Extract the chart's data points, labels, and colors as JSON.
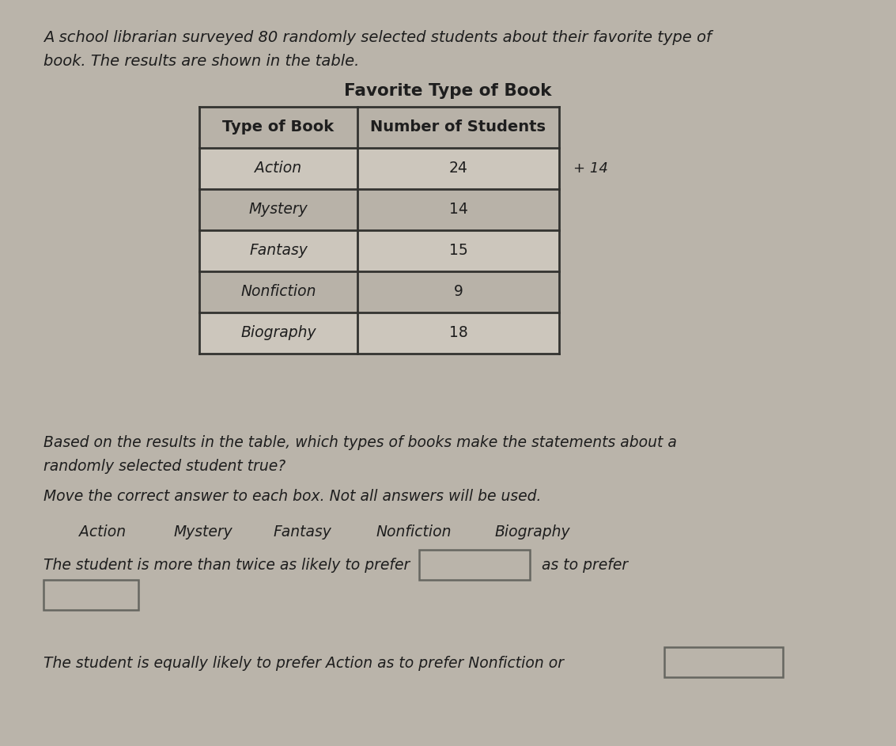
{
  "intro_text_line1": "A school librarian surveyed 80 randomly selected students about their favorite type of",
  "intro_text_line2": "book. The results are shown in the table.",
  "table_title": "Favorite Type of Book",
  "table_headers": [
    "Type of Book",
    "Number of Students"
  ],
  "table_rows": [
    [
      "Action",
      "24"
    ],
    [
      "Mystery",
      "14"
    ],
    [
      "Fantasy",
      "15"
    ],
    [
      "Nonfiction",
      "9"
    ],
    [
      "Biography",
      "18"
    ]
  ],
  "annotation": "+ 14",
  "question_line1": "Based on the results in the table, which types of books make the statements about a",
  "question_line2": "randomly selected student true?",
  "instruction_text": "Move the correct answer to each box. Not all answers will be used.",
  "answer_choices": [
    "Action",
    "Mystery",
    "Fantasy",
    "Nonfiction",
    "Biography"
  ],
  "statement1_prefix": "The student is more than twice as likely to prefer",
  "statement1_suffix": "as to prefer",
  "statement2": "The student is equally likely to prefer Action as to prefer Nonfiction or",
  "bg_color": "#bab4aa",
  "table_bg_light": "#ccc6bc",
  "table_bg_dark": "#b8b2a8",
  "box_fill": "#bab4aa",
  "box_edge": "#666660",
  "text_color": "#1e1e1e",
  "line_color": "#333330"
}
